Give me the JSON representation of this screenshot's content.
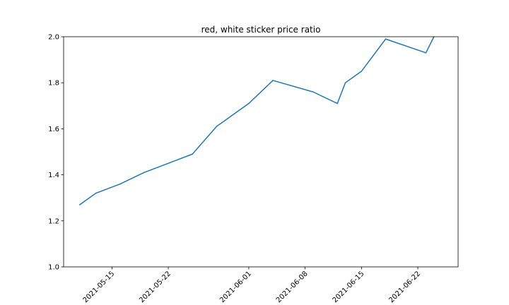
{
  "chart_data": {
    "type": "line",
    "title": "red, white sticker price ratio",
    "xlabel": "",
    "ylabel": "",
    "x_axis": "date",
    "xlim": [
      "2021-05-09",
      "2021-06-27"
    ],
    "ylim": [
      1.0,
      2.0
    ],
    "x_ticks": [
      "2021-05-15",
      "2021-05-22",
      "2021-06-01",
      "2021-06-08",
      "2021-06-15",
      "2021-06-22"
    ],
    "y_ticks": [
      1.0,
      1.2,
      1.4,
      1.6,
      1.8,
      2.0
    ],
    "y_tick_labels": [
      "1.0",
      "1.2",
      "1.4",
      "1.6",
      "1.8",
      "2.0"
    ],
    "grid": false,
    "legend": "none",
    "series": [
      {
        "color": "#1f77b4",
        "x": [
          "2021-05-11",
          "2021-05-13",
          "2021-05-16",
          "2021-05-19",
          "2021-05-22",
          "2021-05-25",
          "2021-05-28",
          "2021-06-01",
          "2021-06-04",
          "2021-06-09",
          "2021-06-12",
          "2021-06-13",
          "2021-06-15",
          "2021-06-18",
          "2021-06-23",
          "2021-06-24"
        ],
        "y": [
          1.27,
          1.32,
          1.36,
          1.41,
          1.45,
          1.49,
          1.61,
          1.71,
          1.81,
          1.76,
          1.71,
          1.8,
          1.85,
          1.99,
          1.93,
          2.0
        ]
      }
    ]
  }
}
